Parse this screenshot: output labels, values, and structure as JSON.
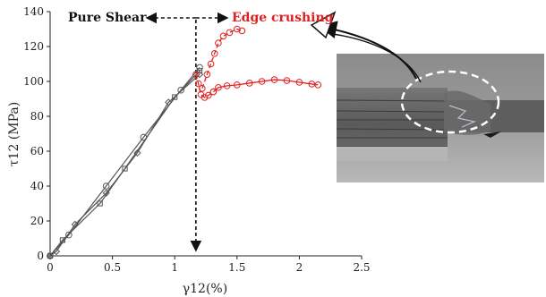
{
  "chart_data": {
    "type": "line",
    "xlabel": "γ12(%)",
    "ylabel": "τ12 (MPa)",
    "xlim": [
      0,
      2.5
    ],
    "ylim": [
      0,
      140
    ],
    "xticks": [
      0,
      0.5,
      1,
      1.5,
      2,
      2.5
    ],
    "xtick_labels": [
      "0",
      "0.5",
      "1",
      "1.5",
      "2",
      "2.5"
    ],
    "yticks": [
      0,
      20,
      40,
      60,
      80,
      100,
      120,
      140
    ],
    "ytick_labels": [
      "0",
      "20",
      "40",
      "60",
      "80",
      "100",
      "120",
      "140"
    ],
    "grid": false,
    "colors": {
      "elastic": "#555555",
      "crushing": "#e02020",
      "divider": "#111111"
    },
    "series": [
      {
        "style": "elastic",
        "marker": "diamond",
        "x": [
          0,
          0.05,
          0.2,
          0.45,
          0.7,
          0.95,
          1.2
        ],
        "y": [
          0,
          2.5,
          18,
          36,
          59,
          88,
          104
        ]
      },
      {
        "style": "elastic",
        "marker": "square",
        "x": [
          0,
          0.1,
          0.4,
          0.6,
          1.0,
          1.2
        ],
        "y": [
          0,
          9,
          30,
          50,
          91,
          106
        ]
      },
      {
        "style": "elastic",
        "marker": "circle",
        "x": [
          0,
          0.15,
          0.45,
          0.75,
          1.05,
          1.2
        ],
        "y": [
          0,
          12,
          40,
          68,
          95,
          108
        ]
      },
      {
        "style": "crushing",
        "marker": "circle",
        "dashed": true,
        "x": [
          1.17,
          1.19,
          1.21,
          1.24,
          1.27,
          1.31
        ],
        "y": [
          104.0,
          98.7,
          92.5,
          90.8,
          92.0,
          94.0
        ]
      },
      {
        "style": "crushing",
        "marker": "circle",
        "x": [
          1.31,
          1.35,
          1.42,
          1.5,
          1.6,
          1.7,
          1.8,
          1.9,
          2.0,
          2.1,
          2.15
        ],
        "y": [
          94.0,
          96.5,
          97.5,
          98.0,
          99.0,
          100.0,
          101.0,
          100.5,
          99.5,
          98.5,
          98.0
        ]
      },
      {
        "style": "crushing",
        "marker": "circle",
        "dashed": true,
        "x": [
          1.22,
          1.26,
          1.29,
          1.32,
          1.35,
          1.39,
          1.44,
          1.5,
          1.54
        ],
        "y": [
          96.0,
          104.0,
          110.0,
          116.0,
          122.0,
          126.0,
          128.0,
          130.0,
          129.0
        ]
      }
    ],
    "annotations": {
      "pure_shear": "Pure Shear",
      "edge_crushing": "Edge crushing",
      "divider_x": 1.17
    }
  },
  "photo": {
    "description_icon": "specimen-photo"
  }
}
